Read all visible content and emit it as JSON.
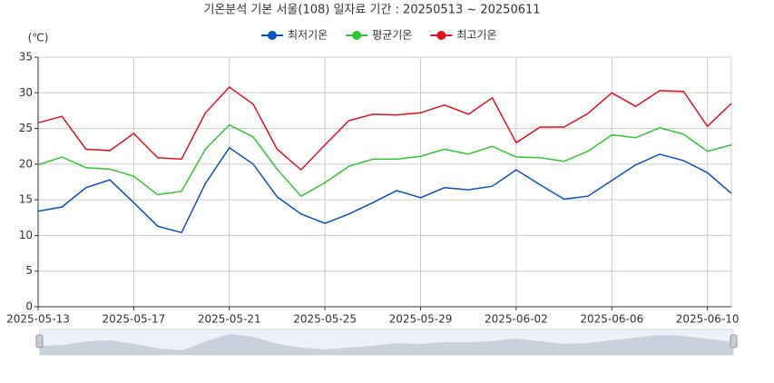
{
  "chart_data": {
    "type": "line",
    "title": "기온분석 기본 서울(108) 일자료 기간 : 20250513 ~ 20250611",
    "y_label": "(℃)",
    "x": [
      "2025-05-13",
      "2025-05-14",
      "2025-05-15",
      "2025-05-16",
      "2025-05-17",
      "2025-05-18",
      "2025-05-19",
      "2025-05-20",
      "2025-05-21",
      "2025-05-22",
      "2025-05-23",
      "2025-05-24",
      "2025-05-25",
      "2025-05-26",
      "2025-05-27",
      "2025-05-28",
      "2025-05-29",
      "2025-05-30",
      "2025-05-31",
      "2025-06-01",
      "2025-06-02",
      "2025-06-03",
      "2025-06-04",
      "2025-06-05",
      "2025-06-06",
      "2025-06-07",
      "2025-06-08",
      "2025-06-09",
      "2025-06-10",
      "2025-06-11"
    ],
    "xlim": [
      "2025-05-13",
      "2025-06-11"
    ],
    "xticks": [
      "2025-05-13",
      "2025-05-17",
      "2025-05-21",
      "2025-05-25",
      "2025-05-29",
      "2025-06-02",
      "2025-06-06",
      "2025-06-10"
    ],
    "ylim": [
      0,
      35
    ],
    "yticks": [
      0,
      5,
      10,
      15,
      20,
      25,
      30,
      35
    ],
    "grid": true,
    "legend": "top",
    "series": [
      {
        "name": "최저기온",
        "color": "#0b4fc1",
        "values": [
          13.4,
          14.0,
          16.7,
          17.8,
          14.6,
          11.3,
          10.4,
          17.3,
          22.3,
          20.0,
          15.4,
          13.0,
          11.7,
          13.0,
          14.6,
          16.3,
          15.3,
          16.7,
          16.4,
          16.9,
          19.2,
          17.1,
          15.1,
          15.5,
          17.7,
          19.9,
          21.4,
          20.5,
          18.8,
          15.9
        ]
      },
      {
        "name": "평균기온",
        "color": "#35c435",
        "values": [
          19.9,
          21.0,
          19.5,
          19.3,
          18.3,
          15.7,
          16.2,
          22.1,
          25.5,
          23.8,
          19.3,
          15.5,
          17.4,
          19.7,
          20.7,
          20.7,
          21.1,
          22.1,
          21.4,
          22.5,
          21.0,
          20.9,
          20.4,
          21.8,
          24.1,
          23.7,
          25.1,
          24.2,
          21.8,
          22.7
        ]
      },
      {
        "name": "최고기온",
        "color": "#e3101e",
        "values": [
          25.8,
          26.7,
          22.1,
          21.9,
          24.3,
          20.9,
          20.7,
          27.2,
          30.8,
          28.4,
          22.1,
          19.2,
          22.7,
          26.1,
          27.0,
          26.9,
          27.2,
          28.3,
          27.0,
          29.3,
          23.0,
          25.2,
          25.2,
          27.1,
          30.0,
          28.1,
          30.3,
          30.2,
          25.3,
          28.5
        ]
      }
    ]
  }
}
